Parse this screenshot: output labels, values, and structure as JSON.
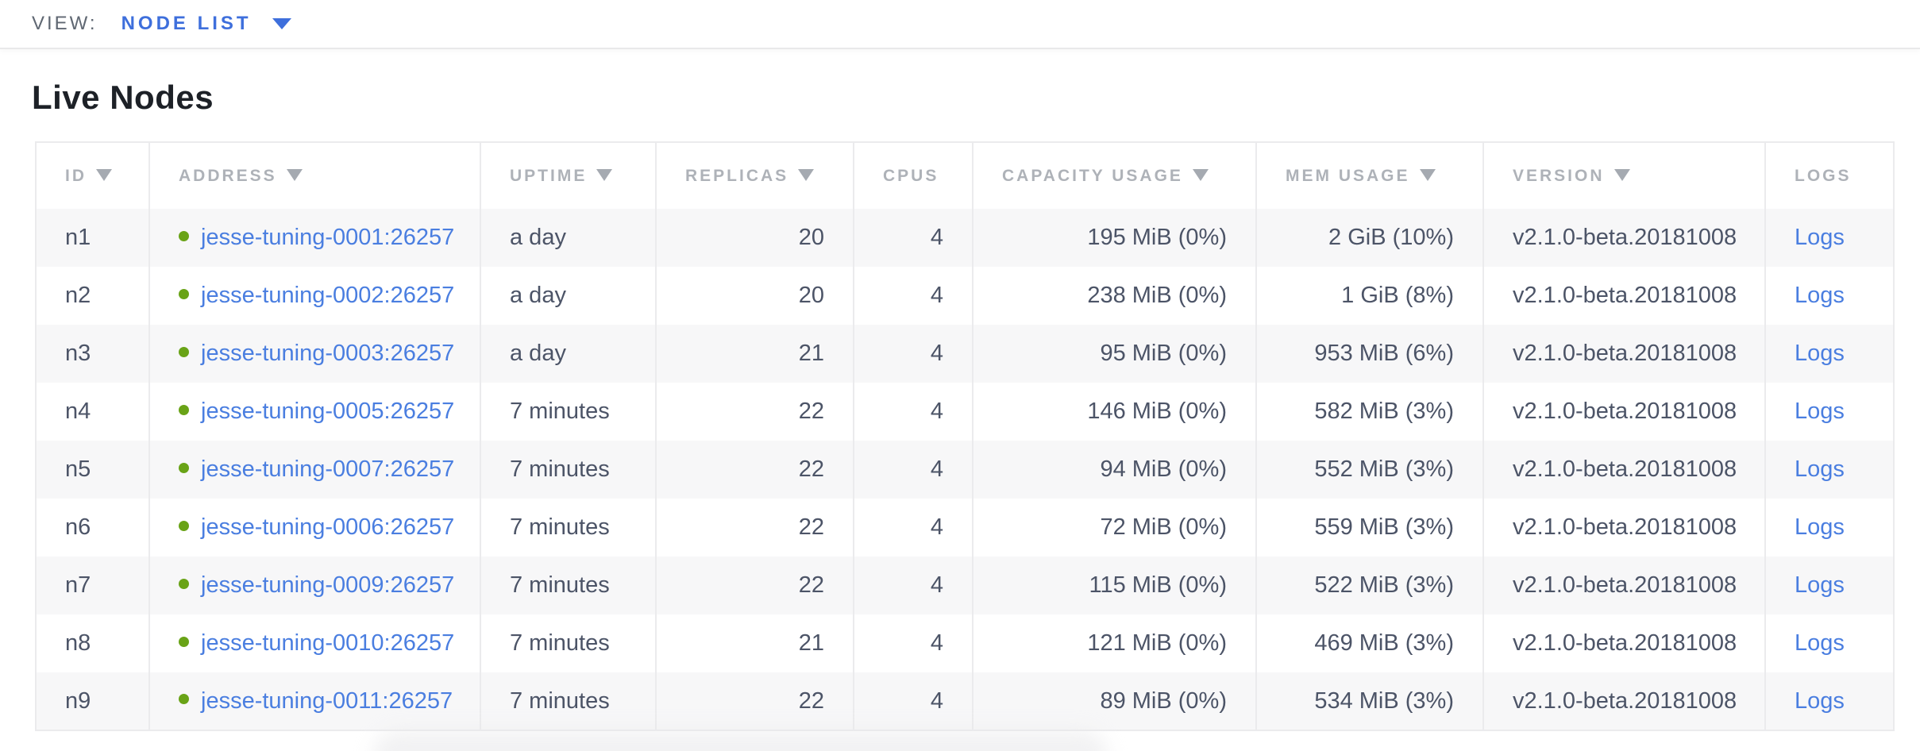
{
  "colors": {
    "accent_blue": "#3e6fdc",
    "link_blue": "#4a7ee0",
    "healthy_green": "#69a317",
    "header_gray": "#aeb2b8",
    "cell_text": "#4c5467",
    "title_text": "#1d2127",
    "row_alt_bg": "#f7f7f8",
    "table_border": "#ebebed"
  },
  "view_bar": {
    "label": "VIEW:",
    "selected": "NODE LIST",
    "caret_icon": "caret-down-icon"
  },
  "page": {
    "title": "Live Nodes"
  },
  "table": {
    "columns": [
      {
        "key": "id",
        "label": "ID",
        "sortable": true,
        "align": "left"
      },
      {
        "key": "address",
        "label": "ADDRESS",
        "sortable": true,
        "align": "left"
      },
      {
        "key": "uptime",
        "label": "UPTIME",
        "sortable": true,
        "align": "left"
      },
      {
        "key": "replicas",
        "label": "REPLICAS",
        "sortable": true,
        "align": "right"
      },
      {
        "key": "cpus",
        "label": "CPUS",
        "sortable": false,
        "align": "right"
      },
      {
        "key": "capacity",
        "label": "CAPACITY USAGE",
        "sortable": true,
        "align": "right"
      },
      {
        "key": "mem",
        "label": "MEM USAGE",
        "sortable": true,
        "align": "right"
      },
      {
        "key": "version",
        "label": "VERSION",
        "sortable": true,
        "align": "left"
      },
      {
        "key": "logs",
        "label": "LOGS",
        "sortable": false,
        "align": "left"
      }
    ],
    "rows": [
      {
        "id": "n1",
        "status": "healthy",
        "address": "jesse-tuning-0001:26257",
        "uptime": "a day",
        "replicas": "20",
        "cpus": "4",
        "capacity": "195 MiB (0%)",
        "mem": "2 GiB (10%)",
        "version": "v2.1.0-beta.20181008",
        "logs": "Logs"
      },
      {
        "id": "n2",
        "status": "healthy",
        "address": "jesse-tuning-0002:26257",
        "uptime": "a day",
        "replicas": "20",
        "cpus": "4",
        "capacity": "238 MiB (0%)",
        "mem": "1 GiB (8%)",
        "version": "v2.1.0-beta.20181008",
        "logs": "Logs"
      },
      {
        "id": "n3",
        "status": "healthy",
        "address": "jesse-tuning-0003:26257",
        "uptime": "a day",
        "replicas": "21",
        "cpus": "4",
        "capacity": "95 MiB (0%)",
        "mem": "953 MiB (6%)",
        "version": "v2.1.0-beta.20181008",
        "logs": "Logs"
      },
      {
        "id": "n4",
        "status": "healthy",
        "address": "jesse-tuning-0005:26257",
        "uptime": "7 minutes",
        "replicas": "22",
        "cpus": "4",
        "capacity": "146 MiB (0%)",
        "mem": "582 MiB (3%)",
        "version": "v2.1.0-beta.20181008",
        "logs": "Logs"
      },
      {
        "id": "n5",
        "status": "healthy",
        "address": "jesse-tuning-0007:26257",
        "uptime": "7 minutes",
        "replicas": "22",
        "cpus": "4",
        "capacity": "94 MiB (0%)",
        "mem": "552 MiB (3%)",
        "version": "v2.1.0-beta.20181008",
        "logs": "Logs"
      },
      {
        "id": "n6",
        "status": "healthy",
        "address": "jesse-tuning-0006:26257",
        "uptime": "7 minutes",
        "replicas": "22",
        "cpus": "4",
        "capacity": "72 MiB (0%)",
        "mem": "559 MiB (3%)",
        "version": "v2.1.0-beta.20181008",
        "logs": "Logs"
      },
      {
        "id": "n7",
        "status": "healthy",
        "address": "jesse-tuning-0009:26257",
        "uptime": "7 minutes",
        "replicas": "22",
        "cpus": "4",
        "capacity": "115 MiB (0%)",
        "mem": "522 MiB (3%)",
        "version": "v2.1.0-beta.20181008",
        "logs": "Logs"
      },
      {
        "id": "n8",
        "status": "healthy",
        "address": "jesse-tuning-0010:26257",
        "uptime": "7 minutes",
        "replicas": "21",
        "cpus": "4",
        "capacity": "121 MiB (0%)",
        "mem": "469 MiB (3%)",
        "version": "v2.1.0-beta.20181008",
        "logs": "Logs"
      },
      {
        "id": "n9",
        "status": "healthy",
        "address": "jesse-tuning-0011:26257",
        "uptime": "7 minutes",
        "replicas": "22",
        "cpus": "4",
        "capacity": "89 MiB (0%)",
        "mem": "534 MiB (3%)",
        "version": "v2.1.0-beta.20181008",
        "logs": "Logs"
      }
    ]
  }
}
